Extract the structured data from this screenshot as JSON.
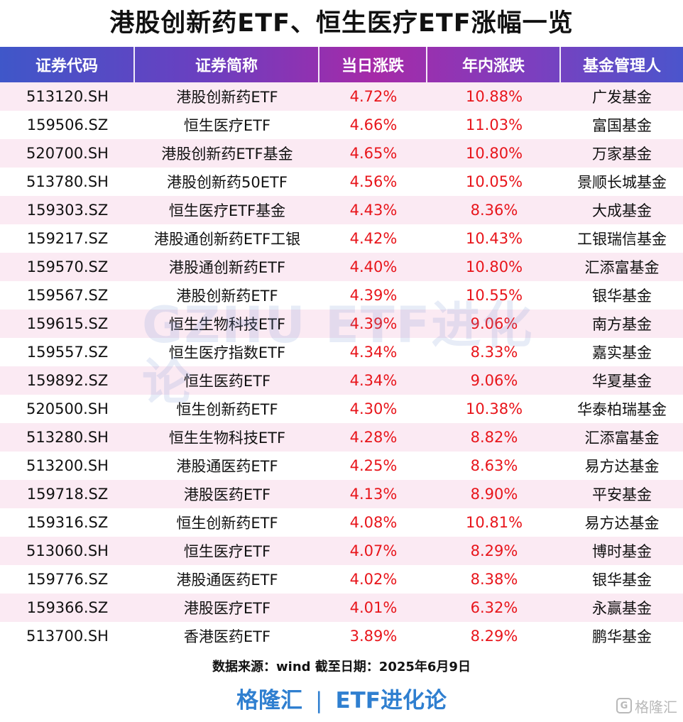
{
  "title": "港股创新药ETF、恒生医疗ETF涨幅一览",
  "columns": [
    "证券代码",
    "证券简称",
    "当日涨跌",
    "年内涨跌",
    "基金管理人"
  ],
  "rows": [
    {
      "code": "513120.SH",
      "name": "港股创新药ETF",
      "day": "4.72%",
      "ytd": "10.88%",
      "manager": "广发基金"
    },
    {
      "code": "159506.SZ",
      "name": "恒生医疗ETF",
      "day": "4.66%",
      "ytd": "11.03%",
      "manager": "富国基金"
    },
    {
      "code": "520700.SH",
      "name": "港股创新药ETF基金",
      "day": "4.65%",
      "ytd": "10.80%",
      "manager": "万家基金"
    },
    {
      "code": "513780.SH",
      "name": "港股创新药50ETF",
      "day": "4.56%",
      "ytd": "10.05%",
      "manager": "景顺长城基金"
    },
    {
      "code": "159303.SZ",
      "name": "恒生医疗ETF基金",
      "day": "4.43%",
      "ytd": "8.36%",
      "manager": "大成基金"
    },
    {
      "code": "159217.SZ",
      "name": "港股通创新药ETF工银",
      "day": "4.42%",
      "ytd": "10.43%",
      "manager": "工银瑞信基金"
    },
    {
      "code": "159570.SZ",
      "name": "港股通创新药ETF",
      "day": "4.40%",
      "ytd": "10.80%",
      "manager": "汇添富基金"
    },
    {
      "code": "159567.SZ",
      "name": "港股创新药ETF",
      "day": "4.39%",
      "ytd": "10.55%",
      "manager": "银华基金"
    },
    {
      "code": "159615.SZ",
      "name": "恒生生物科技ETF",
      "day": "4.39%",
      "ytd": "9.06%",
      "manager": "南方基金"
    },
    {
      "code": "159557.SZ",
      "name": "恒生医疗指数ETF",
      "day": "4.34%",
      "ytd": "8.33%",
      "manager": "嘉实基金"
    },
    {
      "code": "159892.SZ",
      "name": "恒生医药ETF",
      "day": "4.34%",
      "ytd": "9.06%",
      "manager": "华夏基金"
    },
    {
      "code": "520500.SH",
      "name": "恒生创新药ETF",
      "day": "4.30%",
      "ytd": "10.38%",
      "manager": "华泰柏瑞基金"
    },
    {
      "code": "513280.SH",
      "name": "恒生生物科技ETF",
      "day": "4.28%",
      "ytd": "8.82%",
      "manager": "汇添富基金"
    },
    {
      "code": "513200.SH",
      "name": "港股通医药ETF",
      "day": "4.25%",
      "ytd": "8.63%",
      "manager": "易方达基金"
    },
    {
      "code": "159718.SZ",
      "name": "港股医药ETF",
      "day": "4.13%",
      "ytd": "8.90%",
      "manager": "平安基金"
    },
    {
      "code": "159316.SZ",
      "name": "恒生创新药ETF",
      "day": "4.08%",
      "ytd": "10.81%",
      "manager": "易方达基金"
    },
    {
      "code": "513060.SH",
      "name": "恒生医疗ETF",
      "day": "4.07%",
      "ytd": "8.29%",
      "manager": "博时基金"
    },
    {
      "code": "159776.SZ",
      "name": "港股通医药ETF",
      "day": "4.02%",
      "ytd": "8.38%",
      "manager": "银华基金"
    },
    {
      "code": "159366.SZ",
      "name": "港股医疗ETF",
      "day": "4.01%",
      "ytd": "6.32%",
      "manager": "永赢基金"
    },
    {
      "code": "513700.SH",
      "name": "香港医药ETF",
      "day": "3.89%",
      "ytd": "8.29%",
      "manager": "鹏华基金"
    }
  ],
  "watermark": "GZHU ETF进化论",
  "source_note": "数据来源：wind   截至日期：2025年6月9日",
  "brand": {
    "left": "格隆汇",
    "separator": "|",
    "right": "ETF进化论"
  },
  "corner_logo": {
    "icon": "G",
    "text": "格隆汇"
  },
  "colors": {
    "positive": "#e8151b",
    "brand_blue": "#2f7fd0",
    "row_stripe": "#fbeaf3"
  }
}
